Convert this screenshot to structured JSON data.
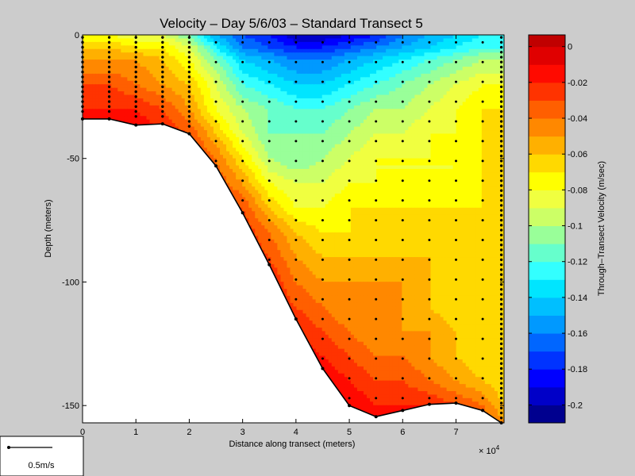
{
  "figure": {
    "background": "#cccccc",
    "scale_label": "0.5m/s"
  },
  "chart_data": {
    "type": "heatmap",
    "title": "Velocity – Day 5/6/03 – Standard Transect 5",
    "xlabel": "Distance along transect (meters)",
    "ylabel": "Depth (meters)",
    "x_multiplier_label": "× 10",
    "x_multiplier_exponent": "4",
    "xlim": [
      0,
      7.9
    ],
    "ylim": [
      -157,
      0
    ],
    "xticks": [
      0,
      1,
      2,
      3,
      4,
      5,
      6,
      7
    ],
    "yticks": [
      0,
      -50,
      -100,
      -150
    ],
    "x_units_note": "x values in units of 10^4 meters",
    "bathymetry": [
      [
        0,
        -34
      ],
      [
        0.5,
        -34
      ],
      [
        1,
        -36.5
      ],
      [
        1.5,
        -36
      ],
      [
        2,
        -40
      ],
      [
        2.5,
        -53
      ],
      [
        3,
        -72
      ],
      [
        3.5,
        -93
      ],
      [
        4,
        -115
      ],
      [
        4.5,
        -135
      ],
      [
        5,
        -150
      ],
      [
        5.5,
        -154.5
      ],
      [
        6,
        -152
      ],
      [
        6.5,
        -149.5
      ],
      [
        7,
        -149
      ],
      [
        7.5,
        -152
      ],
      [
        7.85,
        -157
      ]
    ],
    "profile_x": [
      0,
      0.5,
      1,
      1.5,
      2,
      2.5,
      3,
      3.5,
      4,
      4.5,
      5,
      5.5,
      6,
      6.5,
      7,
      7.5,
      7.85
    ],
    "velocity_grid": {
      "x": [
        0,
        0.5,
        1,
        1.5,
        2,
        2.5,
        3,
        3.5,
        4,
        4.5,
        5,
        5.5,
        6,
        6.5,
        7,
        7.5,
        7.9
      ],
      "depth": [
        0,
        -5,
        -10,
        -20,
        -30,
        -40,
        -50,
        -60,
        -70,
        -80,
        -90,
        -100,
        -110,
        -120,
        -130,
        -140,
        -150,
        -157
      ],
      "values": [
        [
          -0.08,
          -0.08,
          -0.09,
          -0.09,
          -0.11,
          -0.15,
          -0.17,
          -0.18,
          -0.2,
          -0.2,
          -0.19,
          -0.18,
          -0.16,
          -0.15,
          -0.14,
          -0.13,
          -0.13
        ],
        [
          -0.06,
          -0.06,
          -0.07,
          -0.07,
          -0.09,
          -0.13,
          -0.16,
          -0.17,
          -0.18,
          -0.18,
          -0.17,
          -0.16,
          -0.15,
          -0.14,
          -0.13,
          -0.12,
          -0.12
        ],
        [
          -0.05,
          -0.05,
          -0.05,
          -0.06,
          -0.08,
          -0.11,
          -0.14,
          -0.15,
          -0.16,
          -0.16,
          -0.15,
          -0.14,
          -0.13,
          -0.12,
          -0.11,
          -0.1,
          -0.1
        ],
        [
          -0.03,
          -0.03,
          -0.04,
          -0.05,
          -0.06,
          -0.09,
          -0.12,
          -0.13,
          -0.14,
          -0.14,
          -0.13,
          -0.12,
          -0.11,
          -0.1,
          -0.09,
          -0.08,
          -0.08
        ],
        [
          -0.02,
          -0.02,
          -0.02,
          -0.03,
          -0.05,
          -0.08,
          -0.1,
          -0.11,
          -0.12,
          -0.12,
          -0.11,
          -0.1,
          -0.1,
          -0.09,
          -0.08,
          -0.07,
          -0.07
        ],
        [
          -0.01,
          -0.01,
          -0.01,
          -0.02,
          -0.03,
          -0.06,
          -0.09,
          -0.11,
          -0.11,
          -0.11,
          -0.1,
          -0.09,
          -0.09,
          -0.08,
          -0.08,
          -0.07,
          -0.07
        ],
        [
          -0.01,
          -0.01,
          -0.01,
          -0.01,
          -0.02,
          -0.04,
          -0.07,
          -0.1,
          -0.11,
          -0.1,
          -0.09,
          -0.08,
          -0.08,
          -0.08,
          -0.08,
          -0.07,
          -0.07
        ],
        [
          -0.01,
          -0.01,
          -0.01,
          -0.01,
          -0.02,
          -0.03,
          -0.05,
          -0.08,
          -0.09,
          -0.09,
          -0.08,
          -0.08,
          -0.08,
          -0.08,
          -0.08,
          -0.07,
          -0.07
        ],
        [
          -0.01,
          -0.01,
          -0.01,
          -0.01,
          -0.02,
          -0.02,
          -0.03,
          -0.06,
          -0.08,
          -0.08,
          -0.07,
          -0.07,
          -0.07,
          -0.07,
          -0.07,
          -0.07,
          -0.07
        ],
        [
          -0.01,
          -0.01,
          -0.01,
          -0.01,
          -0.02,
          -0.02,
          -0.02,
          -0.04,
          -0.06,
          -0.07,
          -0.07,
          -0.07,
          -0.07,
          -0.07,
          -0.07,
          -0.07,
          -0.07
        ],
        [
          -0.01,
          -0.01,
          -0.01,
          -0.01,
          -0.02,
          -0.02,
          -0.02,
          -0.03,
          -0.05,
          -0.06,
          -0.06,
          -0.06,
          -0.06,
          -0.06,
          -0.07,
          -0.07,
          -0.07
        ],
        [
          -0.01,
          -0.01,
          -0.01,
          -0.01,
          -0.02,
          -0.02,
          -0.02,
          -0.02,
          -0.04,
          -0.05,
          -0.05,
          -0.05,
          -0.05,
          -0.06,
          -0.07,
          -0.07,
          -0.07
        ],
        [
          -0.01,
          -0.01,
          -0.01,
          -0.01,
          -0.02,
          -0.02,
          -0.02,
          -0.02,
          -0.03,
          -0.04,
          -0.05,
          -0.05,
          -0.05,
          -0.06,
          -0.07,
          -0.07,
          -0.07
        ],
        [
          -0.01,
          -0.01,
          -0.01,
          -0.01,
          -0.02,
          -0.02,
          -0.02,
          -0.02,
          -0.02,
          -0.03,
          -0.04,
          -0.05,
          -0.05,
          -0.05,
          -0.06,
          -0.07,
          -0.07
        ],
        [
          -0.01,
          -0.01,
          -0.01,
          -0.01,
          -0.02,
          -0.02,
          -0.02,
          -0.02,
          -0.01,
          -0.02,
          -0.03,
          -0.04,
          -0.04,
          -0.05,
          -0.06,
          -0.07,
          -0.07
        ],
        [
          -0.01,
          -0.01,
          -0.01,
          -0.01,
          -0.02,
          -0.02,
          -0.02,
          -0.02,
          -0.01,
          -0.01,
          -0.02,
          -0.03,
          -0.03,
          -0.04,
          -0.05,
          -0.06,
          -0.07
        ],
        [
          -0.01,
          -0.01,
          -0.01,
          -0.01,
          -0.02,
          -0.02,
          -0.02,
          -0.02,
          -0.01,
          -0.01,
          -0.01,
          -0.02,
          -0.02,
          -0.02,
          -0.03,
          -0.04,
          -0.06
        ],
        [
          -0.01,
          -0.01,
          -0.01,
          -0.01,
          -0.02,
          -0.02,
          -0.02,
          -0.02,
          -0.01,
          -0.01,
          -0.01,
          -0.01,
          -0.01,
          -0.01,
          -0.02,
          -0.03,
          -0.05
        ]
      ]
    },
    "colorbar": {
      "label": "Through–Transect Velocity (m/sec)",
      "min": -0.21,
      "max": 0.0065,
      "ticks": [
        0,
        -0.02,
        -0.04,
        -0.06,
        -0.08,
        -0.1,
        -0.12,
        -0.14,
        -0.16,
        -0.18,
        -0.2
      ],
      "tick_labels": [
        "0",
        "-0.02",
        "-0.04",
        "-0.06",
        "-0.08",
        "-0.1",
        "-0.12",
        "-0.14",
        "-0.16",
        "-0.18",
        "-0.2"
      ],
      "levels": [
        -0.21,
        -0.2,
        -0.19,
        -0.18,
        -0.17,
        -0.16,
        -0.15,
        -0.14,
        -0.13,
        -0.12,
        -0.11,
        -0.1,
        -0.09,
        -0.08,
        -0.07,
        -0.06,
        -0.05,
        -0.04,
        -0.03,
        -0.02,
        -0.01,
        0,
        0.0065
      ],
      "colors": [
        "#00008f",
        "#0000c8",
        "#0000ff",
        "#0033ff",
        "#0066ff",
        "#0099ff",
        "#00bfff",
        "#00e5ff",
        "#33ffff",
        "#66ffcc",
        "#99ff99",
        "#ccff66",
        "#f0ff40",
        "#ffff00",
        "#ffd900",
        "#ffb000",
        "#ff8800",
        "#ff5f00",
        "#ff3300",
        "#ff0a00",
        "#e00000",
        "#c00000"
      ]
    }
  }
}
